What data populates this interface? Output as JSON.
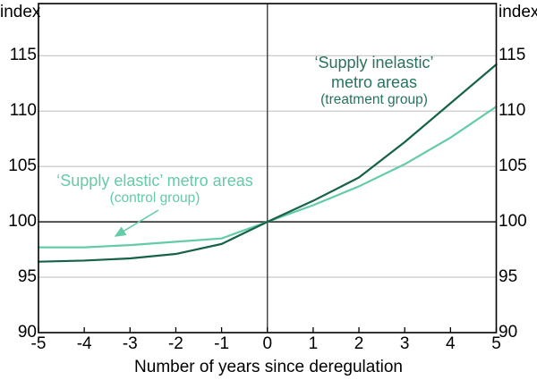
{
  "axis_units": {
    "left": "index",
    "right": "index"
  },
  "chart_data": {
    "type": "line",
    "x": [
      -5,
      -4,
      -3,
      -2,
      -1,
      0,
      1,
      2,
      3,
      4,
      5
    ],
    "xlim": [
      -5,
      5
    ],
    "ylim": [
      90,
      119.7
    ],
    "yticks": [
      90,
      95,
      100,
      105,
      110,
      115
    ],
    "xticks": [
      -5,
      -4,
      -3,
      -2,
      -1,
      0,
      1,
      2,
      3,
      4,
      5
    ],
    "xlabel": "Number of years since deregulation",
    "ylabel": "index",
    "grid": "horizontal light gridlines at yticks; emphasized horizontal line at y=100; vertical reference line at x=0",
    "legend_position": "inline text annotations",
    "series": [
      {
        "name": "supply_inelastic_treatment",
        "label_lines": [
          "‘Supply inelastic’",
          "metro areas",
          "(treatment group)"
        ],
        "color": "#156149",
        "label_color": "#27735F",
        "values": [
          96.4,
          96.5,
          96.7,
          97.1,
          98.0,
          100.0,
          101.9,
          104.0,
          107.2,
          110.7,
          114.2
        ]
      },
      {
        "name": "supply_elastic_control",
        "label_lines": [
          "‘Supply elastic’ metro areas",
          "(control group)"
        ],
        "color": "#63CBA8",
        "label_color": "#63CBA8",
        "values": [
          97.7,
          97.7,
          97.9,
          98.2,
          98.5,
          100.0,
          101.5,
          103.2,
          105.2,
          107.6,
          110.4
        ]
      }
    ],
    "annotation_arrow": {
      "points_to": "supply_elastic_control line",
      "color": "#63CBA8"
    },
    "colors": {
      "grid": "#BBBBBB",
      "axis": "#000000",
      "reference": "#3D3D3D",
      "text": "#000000",
      "background": "#FFFFFF"
    }
  }
}
